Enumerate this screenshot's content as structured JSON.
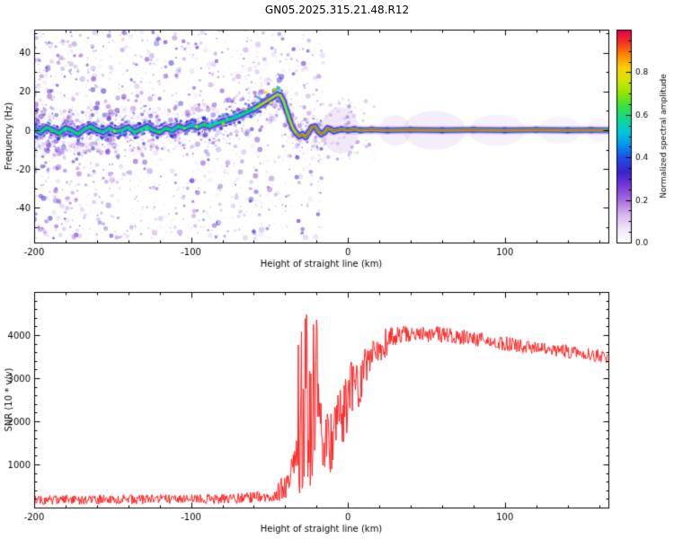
{
  "title": "GN05.2025.315.21.48.R12",
  "chart_data": [
    {
      "type": "heatmap",
      "panel": "spectrogram",
      "xlabel": "Height of straight line (km)",
      "ylabel": "Frequency (Hz)",
      "xlim": [
        -200,
        166
      ],
      "ylim": [
        -58,
        52
      ],
      "xticks": [
        -200,
        -100,
        0,
        100
      ],
      "yticks": [
        -40,
        -20,
        0,
        20,
        40
      ],
      "xminor": 20,
      "yminor": 10,
      "grid": false,
      "colorbar": {
        "label": "Normalized spectral amplitude",
        "ticks": [
          0.0,
          0.2,
          0.4,
          0.6,
          0.8
        ],
        "minor": 0.05,
        "range": [
          0,
          1
        ],
        "stops": [
          [
            0.0,
            "#ffffff"
          ],
          [
            0.06,
            "#f3e8fb"
          ],
          [
            0.13,
            "#d9b6ee"
          ],
          [
            0.2,
            "#a86ae0"
          ],
          [
            0.27,
            "#7437d8"
          ],
          [
            0.33,
            "#3c22cc"
          ],
          [
            0.4,
            "#1b4fe8"
          ],
          [
            0.46,
            "#0097f0"
          ],
          [
            0.52,
            "#00c8d8"
          ],
          [
            0.58,
            "#10d890"
          ],
          [
            0.64,
            "#3ae040"
          ],
          [
            0.7,
            "#8ee600"
          ],
          [
            0.76,
            "#d2e600"
          ],
          [
            0.82,
            "#ffd000"
          ],
          [
            0.88,
            "#ff8800"
          ],
          [
            0.94,
            "#f43322"
          ],
          [
            1.0,
            "#e00048"
          ]
        ]
      },
      "ridge": [
        [
          -200,
          0.5,
          0.5
        ],
        [
          -196,
          -1,
          0.5
        ],
        [
          -192,
          1.5,
          0.5
        ],
        [
          -188,
          0,
          0.5
        ],
        [
          -184,
          -1.5,
          0.55
        ],
        [
          -180,
          1,
          0.5
        ],
        [
          -176,
          0,
          0.5
        ],
        [
          -172,
          -2,
          0.5
        ],
        [
          -168,
          0.5,
          0.55
        ],
        [
          -164,
          2,
          0.5
        ],
        [
          -160,
          0,
          0.55
        ],
        [
          -156,
          -1,
          0.5
        ],
        [
          -152,
          1,
          0.55
        ],
        [
          -148,
          -0.5,
          0.5
        ],
        [
          -144,
          0,
          0.55
        ],
        [
          -140,
          1.5,
          0.55
        ],
        [
          -136,
          -1,
          0.5
        ],
        [
          -132,
          0.5,
          0.55
        ],
        [
          -128,
          2,
          0.55
        ],
        [
          -124,
          0,
          0.55
        ],
        [
          -120,
          -1,
          0.55
        ],
        [
          -116,
          1,
          0.55
        ],
        [
          -112,
          0,
          0.6
        ],
        [
          -108,
          2,
          0.55
        ],
        [
          -104,
          1,
          0.6
        ],
        [
          -100,
          2.5,
          0.6
        ],
        [
          -96,
          1.5,
          0.6
        ],
        [
          -92,
          3,
          0.6
        ],
        [
          -88,
          2,
          0.6
        ],
        [
          -84,
          3.5,
          0.62
        ],
        [
          -80,
          4.5,
          0.62
        ],
        [
          -76,
          5.5,
          0.65
        ],
        [
          -72,
          6.5,
          0.65
        ],
        [
          -68,
          8,
          0.68
        ],
        [
          -64,
          9.5,
          0.7
        ],
        [
          -60,
          11,
          0.72
        ],
        [
          -56,
          13,
          0.78
        ],
        [
          -52,
          15,
          0.82
        ],
        [
          -48,
          17,
          0.85
        ],
        [
          -45,
          18.5,
          0.85
        ],
        [
          -43,
          18,
          0.82
        ],
        [
          -41,
          15,
          0.78
        ],
        [
          -39,
          10,
          0.75
        ],
        [
          -37,
          5,
          0.8
        ],
        [
          -35,
          1,
          0.85
        ],
        [
          -33,
          -1.5,
          0.88
        ],
        [
          -31,
          -3,
          0.92
        ],
        [
          -29,
          -2,
          0.9
        ],
        [
          -27,
          -3.5,
          0.92
        ],
        [
          -25,
          -1,
          0.92
        ],
        [
          -23,
          1.5,
          0.95
        ],
        [
          -21,
          2,
          0.95
        ],
        [
          -19,
          -0.5,
          1
        ],
        [
          -17,
          -2,
          1
        ],
        [
          -15,
          -1,
          1
        ],
        [
          -13,
          1,
          1
        ],
        [
          -11,
          0.5,
          1
        ],
        [
          -9,
          -0.5,
          1
        ],
        [
          -7,
          0,
          1
        ],
        [
          -4,
          0.5,
          1
        ],
        [
          0,
          0,
          1
        ],
        [
          4,
          0.5,
          1
        ],
        [
          8,
          0,
          1
        ],
        [
          15,
          0.3,
          1
        ],
        [
          25,
          0,
          1
        ],
        [
          40,
          0.2,
          1
        ],
        [
          60,
          0,
          1
        ],
        [
          80,
          0.2,
          1
        ],
        [
          100,
          0,
          1
        ],
        [
          120,
          0.2,
          1
        ],
        [
          140,
          0,
          1
        ],
        [
          155,
          0.1,
          1
        ],
        [
          167,
          0,
          1
        ]
      ],
      "noise": {
        "seed": 42,
        "speckle_count": 3000,
        "band_count": 850,
        "sparse_right_count": 160,
        "palette": [
          "#e7d7f6",
          "#d4b9ef",
          "#b98fe4",
          "#9c63d8",
          "#8046ce",
          "#6c35c8",
          "#5b22c0",
          "#3d34d6"
        ],
        "band_palette": [
          "#2a1fd0",
          "#3838e0",
          "#2255ee",
          "#4b2fd8"
        ]
      },
      "bead_palette": [
        "#19c8e8",
        "#22dd99",
        "#2fe22f",
        "#9fe818",
        "#15b0e8"
      ],
      "hot_dots": [
        [
          -52,
          19.5,
          "#ffe000",
          2
        ],
        [
          -47,
          21,
          "#7be000",
          2
        ],
        [
          -44,
          21.5,
          "#27d8b0",
          2.2
        ],
        [
          -57,
          17,
          "#27c8e8",
          2
        ],
        [
          -49,
          14,
          "#ffe000",
          1.8
        ]
      ],
      "wisps": [
        [
          55,
          0,
          20,
          5,
          0.2
        ],
        [
          95,
          0,
          18,
          4,
          0.16
        ],
        [
          135,
          0,
          14,
          3.5,
          0.13
        ],
        [
          30,
          0,
          10,
          4,
          0.18
        ],
        [
          160,
          0,
          8,
          3,
          0.12
        ],
        [
          -5,
          0,
          12,
          6,
          0.25
        ]
      ],
      "wisp_color": "#c9a7e8"
    },
    {
      "type": "line",
      "panel": "snr",
      "xlabel": "Height of straight line (km)",
      "ylabel": "SNR (10 * v/v)",
      "xlim": [
        -200,
        166
      ],
      "ylim": [
        0,
        5000
      ],
      "xticks": [
        -200,
        -100,
        0,
        100
      ],
      "yticks": [
        1000,
        2000,
        3000,
        4000
      ],
      "xminor": 20,
      "yminor": 200,
      "grid": false,
      "color": "#ff2020",
      "seed": 7,
      "step_km": 0.4,
      "segments": [
        {
          "x0": -200,
          "x1": -70,
          "b0": 180,
          "b1": 200,
          "n": 110
        },
        {
          "x0": -70,
          "x1": -45,
          "b0": 220,
          "b1": 280,
          "n": 130
        },
        {
          "x0": -45,
          "x1": -36,
          "b0": 450,
          "b1": 520,
          "n": 300
        },
        {
          "x0": -36,
          "x1": -32,
          "b0": 700,
          "b1": 1500,
          "n": 550
        },
        {
          "x0": -32,
          "x1": -18,
          "b0": 2300,
          "b1": 2400,
          "n": 2250
        },
        {
          "x0": -18,
          "x1": -8,
          "b0": 1700,
          "b1": 1600,
          "n": 850
        },
        {
          "x0": -8,
          "x1": 0,
          "b0": 1900,
          "b1": 2400,
          "n": 750
        },
        {
          "x0": 0,
          "x1": 12,
          "b0": 2700,
          "b1": 3100,
          "n": 650
        },
        {
          "x0": 12,
          "x1": 25,
          "b0": 3300,
          "b1": 3900,
          "n": 380
        },
        {
          "x0": 25,
          "x1": 45,
          "b0": 3950,
          "b1": 4100,
          "n": 220
        },
        {
          "x0": 45,
          "x1": 75,
          "b0": 4050,
          "b1": 3950,
          "n": 190
        },
        {
          "x0": 75,
          "x1": 110,
          "b0": 3950,
          "b1": 3750,
          "n": 170
        },
        {
          "x0": 110,
          "x1": 145,
          "b0": 3750,
          "b1": 3600,
          "n": 160
        },
        {
          "x0": 145,
          "x1": 166,
          "b0": 3600,
          "b1": 3500,
          "n": 160
        }
      ]
    }
  ]
}
